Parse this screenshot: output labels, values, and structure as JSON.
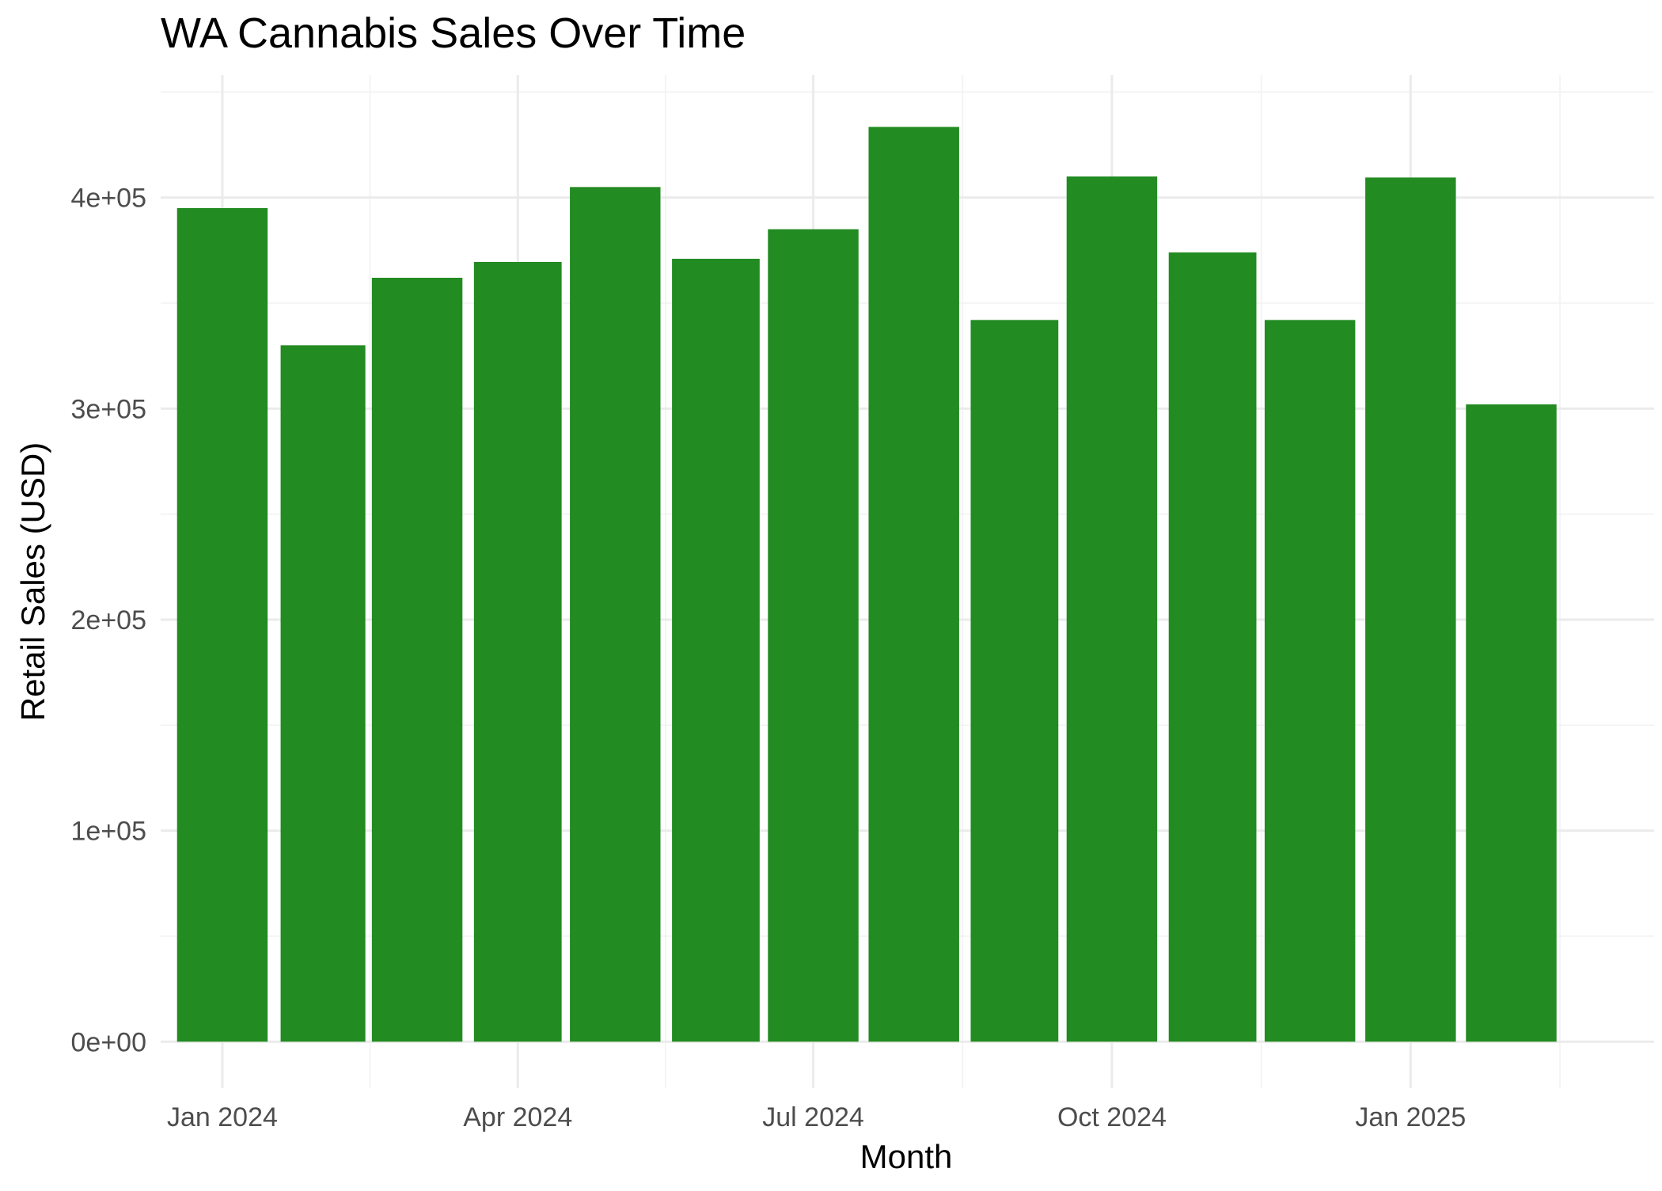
{
  "chart_data": {
    "type": "bar",
    "title": "WA Cannabis Sales Over Time",
    "xlabel": "Month",
    "ylabel": "Retail Sales (USD)",
    "bar_color": "#228B22",
    "background": "#ffffff",
    "grid": true,
    "legend": "none",
    "x_type": "date",
    "xlim": [
      "2023-12-13",
      "2025-03-17"
    ],
    "ylim": [
      -22000,
      458000
    ],
    "categories": [
      "2024-01",
      "2024-02",
      "2024-03",
      "2024-04",
      "2024-05",
      "2024-06",
      "2024-07",
      "2024-08",
      "2024-09",
      "2024-10",
      "2024-11",
      "2024-12",
      "2025-01",
      "2025-02"
    ],
    "category_dates": [
      "2024-01-01",
      "2024-02-01",
      "2024-03-01",
      "2024-04-01",
      "2024-05-01",
      "2024-06-01",
      "2024-07-01",
      "2024-08-01",
      "2024-09-01",
      "2024-10-01",
      "2024-11-01",
      "2024-12-01",
      "2025-01-01",
      "2025-02-01"
    ],
    "values": [
      395000,
      330000,
      362000,
      369500,
      405000,
      371000,
      385000,
      433500,
      342000,
      410000,
      374000,
      342000,
      409500,
      302000
    ],
    "y_ticks": [
      {
        "value": 0,
        "label": "0e+00"
      },
      {
        "value": 100000,
        "label": "1e+05"
      },
      {
        "value": 200000,
        "label": "2e+05"
      },
      {
        "value": 300000,
        "label": "3e+05"
      },
      {
        "value": 400000,
        "label": "4e+05"
      }
    ],
    "x_ticks": [
      {
        "date": "2024-01-01",
        "label": "Jan 2024"
      },
      {
        "date": "2024-04-01",
        "label": "Apr 2024"
      },
      {
        "date": "2024-07-01",
        "label": "Jul 2024"
      },
      {
        "date": "2024-10-01",
        "label": "Oct 2024"
      },
      {
        "date": "2025-01-01",
        "label": "Jan 2025"
      }
    ]
  }
}
